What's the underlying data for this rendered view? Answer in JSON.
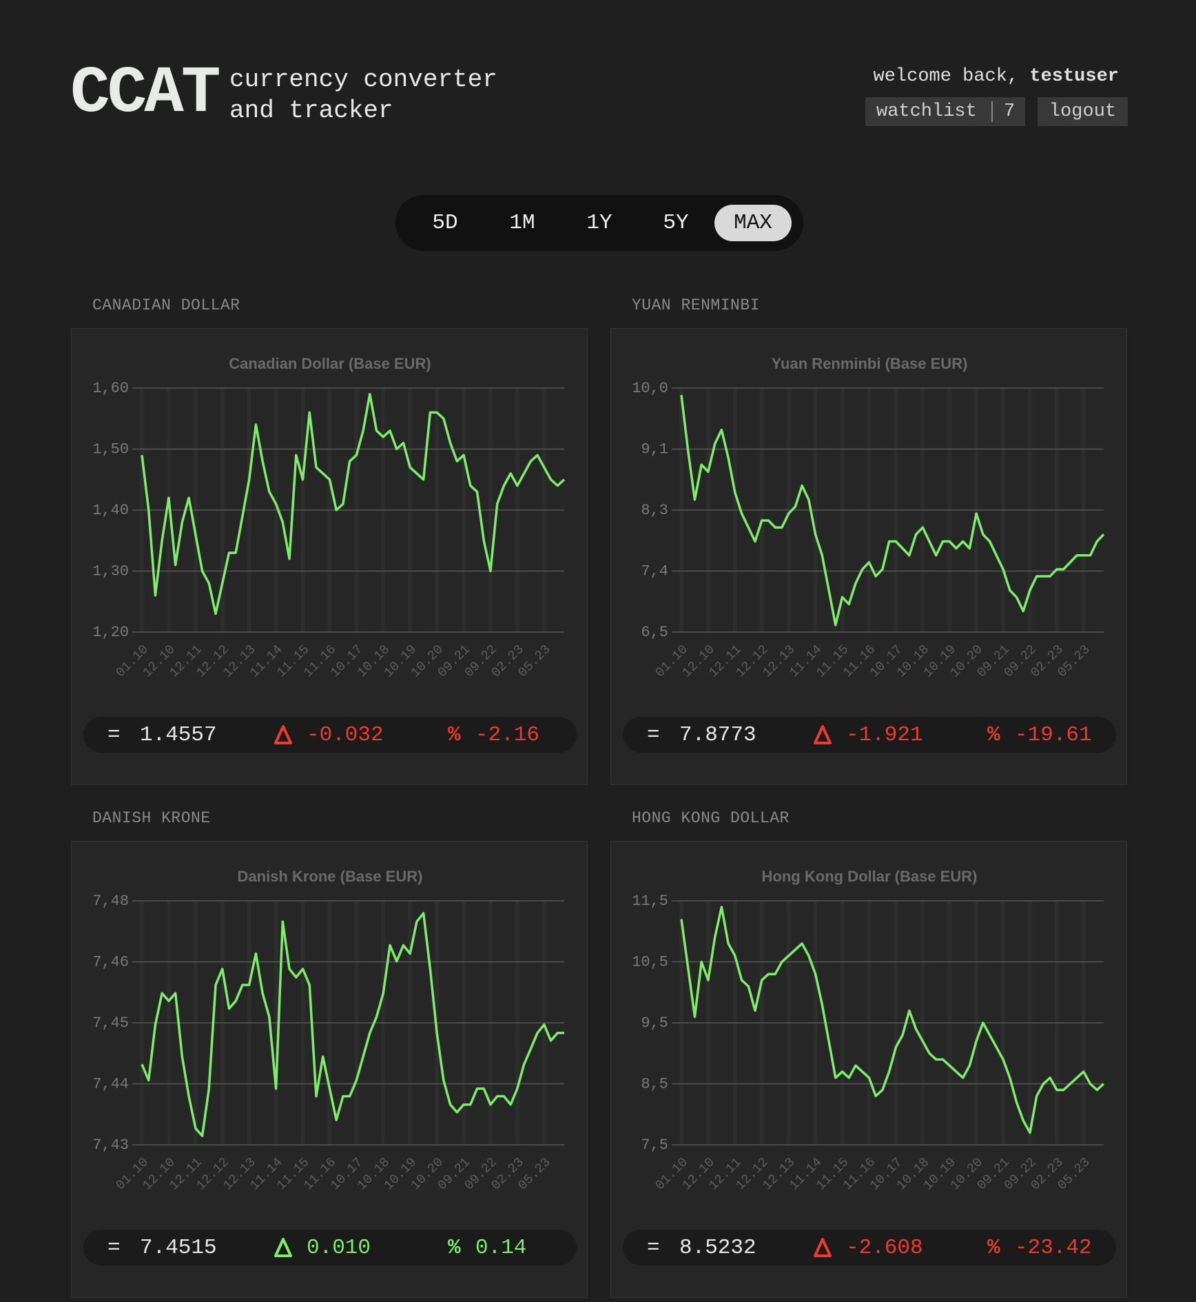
{
  "header": {
    "logo": "CCAT",
    "tagline": [
      "currency converter",
      "and tracker"
    ],
    "welcome": "welcome back,",
    "user": "testuser",
    "watchlist": "watchlist",
    "watch_count": 7,
    "logout": "logout"
  },
  "periods": [
    "5D",
    "1M",
    "1Y",
    "5Y",
    "MAX"
  ],
  "selected_period": "MAX",
  "symbols": {
    "equal": "=",
    "percent": "%"
  },
  "cards": [
    {
      "label": "CANADIAN DOLLAR",
      "stats": {
        "current": "1.4557",
        "change": "-0.032",
        "percent": "-2.16",
        "color": "#ee3b30"
      }
    },
    {
      "label": "YUAN RENMINBI",
      "stats": {
        "current": "7.8773",
        "change": "-1.921",
        "percent": "-19.61",
        "color": "#ee3b30"
      }
    },
    {
      "label": "DANISH KRONE",
      "stats": {
        "current": "7.4515",
        "change": "0.010",
        "percent": "0.14",
        "color": "#7ded6a"
      }
    },
    {
      "label": "HONG KONG DOLLAR",
      "stats": {
        "current": "8.5232",
        "change": "-2.608",
        "percent": "-23.42",
        "color": "#ee3b30"
      }
    }
  ],
  "chart_data": [
    {
      "type": "line",
      "title": "Canadian Dollar (Base EUR)",
      "color": "#7ded6a",
      "grid": true,
      "categories": [
        "01.10",
        null,
        null,
        null,
        "12.10",
        null,
        null,
        null,
        "12.11",
        null,
        null,
        null,
        "12.12",
        null,
        null,
        null,
        "12.13",
        null,
        null,
        null,
        "11.14",
        null,
        null,
        null,
        "11.15",
        null,
        null,
        null,
        "11.16",
        null,
        null,
        null,
        "10.17",
        null,
        null,
        null,
        "10.18",
        null,
        null,
        null,
        "10.19",
        null,
        null,
        null,
        "10.20",
        null,
        null,
        null,
        "09.21",
        null,
        null,
        null,
        "09.22",
        null,
        null,
        null,
        "02.23",
        null,
        null,
        null,
        "05.23",
        null,
        null,
        null
      ],
      "values": [
        1.49,
        1.4,
        1.26,
        1.35,
        1.42,
        1.31,
        1.38,
        1.42,
        1.36,
        1.3,
        1.28,
        1.23,
        1.28,
        1.33,
        1.33,
        1.39,
        1.45,
        1.54,
        1.48,
        1.43,
        1.41,
        1.38,
        1.32,
        1.49,
        1.45,
        1.56,
        1.47,
        1.46,
        1.45,
        1.4,
        1.41,
        1.48,
        1.49,
        1.53,
        1.59,
        1.53,
        1.52,
        1.53,
        1.5,
        1.51,
        1.47,
        1.46,
        1.45,
        1.56,
        1.56,
        1.55,
        1.51,
        1.48,
        1.49,
        1.44,
        1.43,
        1.35,
        1.3,
        1.41,
        1.44,
        1.46,
        1.44,
        1.46,
        1.48,
        1.49,
        1.47,
        1.45,
        1.44,
        1.45
      ],
      "ylim": [
        1.2,
        1.6
      ],
      "yticks": [
        {
          "value": 1.2,
          "label": "1,20"
        },
        {
          "value": 1.3,
          "label": "1,30"
        },
        {
          "value": 1.4,
          "label": "1,40"
        },
        {
          "value": 1.5,
          "label": "1,50"
        },
        {
          "value": 1.6,
          "label": "1,60"
        }
      ]
    },
    {
      "type": "line",
      "title": "Yuan Renminbi (Base EUR)",
      "color": "#7ded6a",
      "grid": true,
      "categories": [
        "01.10",
        null,
        null,
        null,
        "12.10",
        null,
        null,
        null,
        "12.11",
        null,
        null,
        null,
        "12.12",
        null,
        null,
        null,
        "12.13",
        null,
        null,
        null,
        "11.14",
        null,
        null,
        null,
        "11.15",
        null,
        null,
        null,
        "11.16",
        null,
        null,
        null,
        "10.17",
        null,
        null,
        null,
        "10.18",
        null,
        null,
        null,
        "10.19",
        null,
        null,
        null,
        "10.20",
        null,
        null,
        null,
        "09.21",
        null,
        null,
        null,
        "09.22",
        null,
        null,
        null,
        "02.23",
        null,
        null,
        null,
        "05.23",
        null,
        null,
        null
      ],
      "values": [
        9.9,
        9.1,
        8.4,
        8.9,
        8.8,
        9.2,
        9.4,
        9.0,
        8.5,
        8.2,
        8.0,
        7.8,
        8.1,
        8.1,
        8.0,
        8.0,
        8.2,
        8.3,
        8.6,
        8.4,
        7.9,
        7.6,
        7.1,
        6.6,
        7.0,
        6.9,
        7.2,
        7.4,
        7.5,
        7.3,
        7.4,
        7.8,
        7.8,
        7.7,
        7.6,
        7.9,
        8.0,
        7.8,
        7.6,
        7.8,
        7.8,
        7.7,
        7.8,
        7.7,
        8.2,
        7.9,
        7.8,
        7.6,
        7.4,
        7.1,
        7.0,
        6.8,
        7.1,
        7.3,
        7.3,
        7.3,
        7.4,
        7.4,
        7.5,
        7.6,
        7.6,
        7.6,
        7.8,
        7.9
      ],
      "ylim": [
        6.5,
        10.0
      ],
      "yticks": [
        {
          "value": 6.5,
          "label": "6,5"
        },
        {
          "value": 7.375,
          "label": "7,4"
        },
        {
          "value": 8.25,
          "label": "8,3"
        },
        {
          "value": 9.125,
          "label": "9,1"
        },
        {
          "value": 10.0,
          "label": "10,0"
        }
      ]
    },
    {
      "type": "line",
      "title": "Danish Krone (Base EUR)",
      "color": "#7ded6a",
      "grid": true,
      "categories": [
        "01.10",
        null,
        null,
        null,
        "12.10",
        null,
        null,
        null,
        "12.11",
        null,
        null,
        null,
        "12.12",
        null,
        null,
        null,
        "12.13",
        null,
        null,
        null,
        "11.14",
        null,
        null,
        null,
        "11.15",
        null,
        null,
        null,
        "11.16",
        null,
        null,
        null,
        "10.17",
        null,
        null,
        null,
        "10.18",
        null,
        null,
        null,
        "10.19",
        null,
        null,
        null,
        "10.20",
        null,
        null,
        null,
        "09.21",
        null,
        null,
        null,
        "09.22",
        null,
        null,
        null,
        "02.23",
        null,
        null,
        null,
        "05.23",
        null,
        null,
        null
      ],
      "values": [
        7.4476,
        7.4449,
        7.4543,
        7.4596,
        7.4583,
        7.4596,
        7.4489,
        7.4422,
        7.4368,
        7.4355,
        7.4435,
        7.461,
        7.4637,
        7.457,
        7.4583,
        7.461,
        7.461,
        7.4663,
        7.4596,
        7.4556,
        7.4435,
        7.4717,
        7.4637,
        7.4623,
        7.4637,
        7.461,
        7.4422,
        7.4489,
        7.4435,
        7.4382,
        7.4422,
        7.4422,
        7.4449,
        7.4489,
        7.4529,
        7.4556,
        7.4596,
        7.4677,
        7.465,
        7.4677,
        7.4663,
        7.4717,
        7.4731,
        7.4637,
        7.4529,
        7.4449,
        7.4408,
        7.4395,
        7.4408,
        7.4408,
        7.4435,
        7.4435,
        7.4408,
        7.4422,
        7.4422,
        7.4408,
        7.4435,
        7.4476,
        7.4502,
        7.4529,
        7.4543,
        7.4516,
        7.4529,
        7.4529
      ],
      "ylim": [
        7.434,
        7.4752
      ],
      "yticks": [
        {
          "value": 7.434,
          "label": "7,43"
        },
        {
          "value": 7.4443,
          "label": "7,44"
        },
        {
          "value": 7.4546,
          "label": "7,45"
        },
        {
          "value": 7.4649,
          "label": "7,46"
        },
        {
          "value": 7.4752,
          "label": "7,48"
        }
      ]
    },
    {
      "type": "line",
      "title": "Hong Kong Dollar (Base EUR)",
      "color": "#7ded6a",
      "grid": true,
      "categories": [
        "01.10",
        null,
        null,
        null,
        "12.10",
        null,
        null,
        null,
        "12.11",
        null,
        null,
        null,
        "12.12",
        null,
        null,
        null,
        "12.13",
        null,
        null,
        null,
        "11.14",
        null,
        null,
        null,
        "11.15",
        null,
        null,
        null,
        "11.16",
        null,
        null,
        null,
        "10.17",
        null,
        null,
        null,
        "10.18",
        null,
        null,
        null,
        "10.19",
        null,
        null,
        null,
        "10.20",
        null,
        null,
        null,
        "09.21",
        null,
        null,
        null,
        "09.22",
        null,
        null,
        null,
        "02.23",
        null,
        null,
        null,
        "05.23",
        null,
        null,
        null
      ],
      "values": [
        11.2,
        10.4,
        9.6,
        10.5,
        10.2,
        10.9,
        11.4,
        10.8,
        10.6,
        10.2,
        10.1,
        9.7,
        10.2,
        10.3,
        10.3,
        10.5,
        10.6,
        10.7,
        10.8,
        10.6,
        10.3,
        9.8,
        9.2,
        8.6,
        8.7,
        8.6,
        8.8,
        8.7,
        8.6,
        8.3,
        8.4,
        8.7,
        9.1,
        9.3,
        9.7,
        9.4,
        9.2,
        9.0,
        8.9,
        8.9,
        8.8,
        8.7,
        8.6,
        8.8,
        9.2,
        9.5,
        9.3,
        9.1,
        8.9,
        8.6,
        8.2,
        7.9,
        7.7,
        8.3,
        8.5,
        8.6,
        8.4,
        8.4,
        8.5,
        8.6,
        8.7,
        8.5,
        8.4,
        8.5
      ],
      "ylim": [
        7.5,
        11.5
      ],
      "yticks": [
        {
          "value": 7.5,
          "label": "7,5"
        },
        {
          "value": 8.5,
          "label": "8,5"
        },
        {
          "value": 9.5,
          "label": "9,5"
        },
        {
          "value": 10.5,
          "label": "10,5"
        },
        {
          "value": 11.5,
          "label": "11,5"
        }
      ]
    }
  ]
}
